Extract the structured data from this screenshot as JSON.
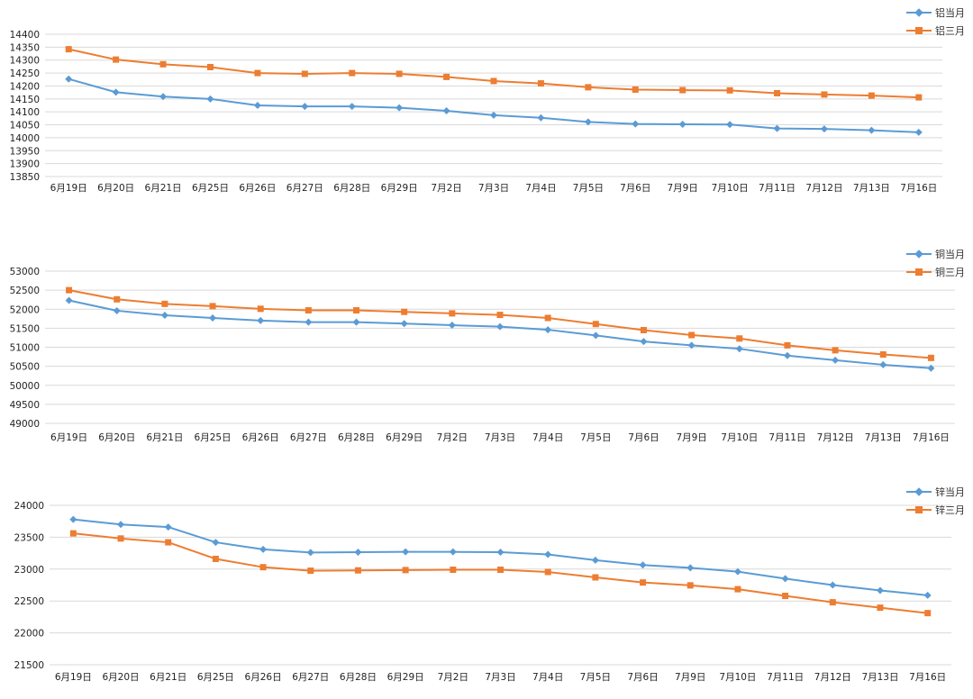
{
  "colors": {
    "series1": "#5B9BD5",
    "series2": "#ED7D31",
    "grid": "#d9d9d9"
  },
  "chart_data": [
    {
      "type": "line",
      "categories": [
        "6月19日",
        "6月20日",
        "6月21日",
        "6月25日",
        "6月26日",
        "6月27日",
        "6月28日",
        "6月29日",
        "7月2日",
        "7月3日",
        "7月4日",
        "7月5日",
        "7月6日",
        "7月9日",
        "7月10日",
        "7月11日",
        "7月12日",
        "7月13日",
        "7月16日"
      ],
      "series": [
        {
          "name": "铝当月",
          "values": [
            14227,
            14176,
            14159,
            14150,
            14125,
            14121,
            14121,
            14116,
            14104,
            14087,
            14077,
            14061,
            14053,
            14052,
            14051,
            14036,
            14034,
            14029,
            14021
          ]
        },
        {
          "name": "铝三月",
          "values": [
            14342,
            14302,
            14284,
            14273,
            14250,
            14247,
            14250,
            14247,
            14235,
            14219,
            14210,
            14195,
            14186,
            14184,
            14183,
            14172,
            14167,
            14163,
            14156
          ]
        }
      ],
      "y_ticks": [
        "14400",
        "14350",
        "14300",
        "14250",
        "14200",
        "14150",
        "14100",
        "14050",
        "14000",
        "13950",
        "13900",
        "13850"
      ],
      "ylim": [
        13850,
        14400
      ],
      "grid": true,
      "legend": "top-right"
    },
    {
      "type": "line",
      "categories": [
        "6月19日",
        "6月20日",
        "6月21日",
        "6月25日",
        "6月26日",
        "6月27日",
        "6月28日",
        "6月29日",
        "7月2日",
        "7月3日",
        "7月4日",
        "7月5日",
        "7月6日",
        "7月9日",
        "7月10日",
        "7月11日",
        "7月12日",
        "7月13日",
        "7月16日"
      ],
      "series": [
        {
          "name": "铜当月",
          "values": [
            52230,
            51960,
            51840,
            51770,
            51700,
            51660,
            51660,
            51620,
            51580,
            51540,
            51460,
            51310,
            51150,
            51050,
            50960,
            50780,
            50660,
            50540,
            50450
          ]
        },
        {
          "name": "铜三月",
          "values": [
            52500,
            52260,
            52140,
            52080,
            52010,
            51970,
            51970,
            51930,
            51890,
            51850,
            51770,
            51610,
            51450,
            51320,
            51230,
            51050,
            50920,
            50810,
            50720
          ]
        }
      ],
      "y_ticks": [
        "53000",
        "52500",
        "52000",
        "51500",
        "51000",
        "50500",
        "50000",
        "49500",
        "49000"
      ],
      "ylim": [
        49000,
        53000
      ],
      "grid": true,
      "legend": "top-right"
    },
    {
      "type": "line",
      "categories": [
        "6月19日",
        "6月20日",
        "6月21日",
        "6月25日",
        "6月26日",
        "6月27日",
        "6月28日",
        "6月29日",
        "7月2日",
        "7月3日",
        "7月4日",
        "7月5日",
        "7月6日",
        "7月9日",
        "7月10日",
        "7月11日",
        "7月12日",
        "7月13日",
        "7月16日"
      ],
      "series": [
        {
          "name": "锌当月",
          "values": [
            23780,
            23700,
            23660,
            23420,
            23310,
            23260,
            23265,
            23270,
            23270,
            23265,
            23230,
            23140,
            23065,
            23020,
            22960,
            22850,
            22750,
            22665,
            22590
          ]
        },
        {
          "name": "锌三月",
          "values": [
            23560,
            23480,
            23420,
            23160,
            23030,
            22975,
            22980,
            22985,
            22990,
            22990,
            22955,
            22870,
            22790,
            22745,
            22685,
            22580,
            22480,
            22395,
            22310
          ]
        }
      ],
      "y_ticks": [
        "24000",
        "23500",
        "23000",
        "22500",
        "22000",
        "21500"
      ],
      "ylim": [
        21500,
        24000
      ],
      "grid": true,
      "legend": "top-right"
    }
  ]
}
